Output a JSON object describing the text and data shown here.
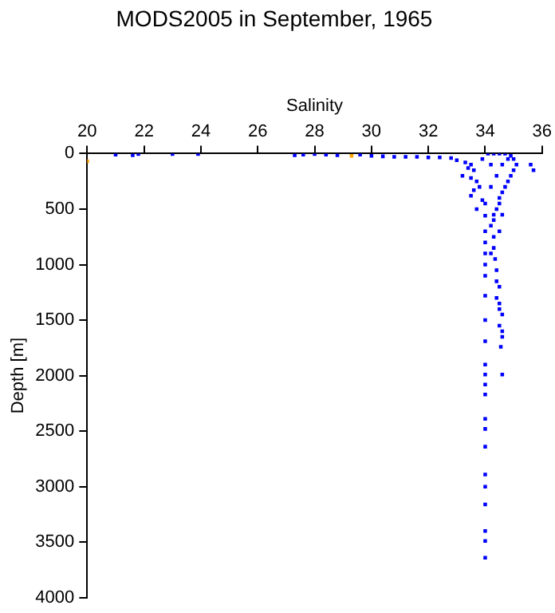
{
  "chart_data": {
    "type": "scatter",
    "title": "MODS2005 in September, 1965",
    "xlabel": "Salinity",
    "ylabel": "Depth [m]",
    "xlim": [
      20,
      36
    ],
    "xticks": [
      20,
      22,
      24,
      26,
      28,
      30,
      32,
      34,
      36
    ],
    "ylim": [
      4000,
      0
    ],
    "yticks": [
      0,
      500,
      1000,
      1500,
      2000,
      2500,
      3000,
      3500,
      4000
    ],
    "grid": false,
    "legend": false,
    "marker": "square",
    "series": [
      {
        "color": "#0000ff",
        "x": [
          21.0,
          21.6,
          21.8,
          23.0,
          23.9,
          27.3,
          27.6,
          28.0,
          28.4,
          28.8,
          29.6,
          30.0,
          30.4,
          30.8,
          31.2,
          31.6,
          32.0,
          32.4,
          32.8,
          33.0,
          33.3,
          33.5,
          33.4,
          33.6,
          33.2,
          33.5,
          33.7,
          33.8,
          33.6,
          33.5,
          33.9,
          33.7,
          34.0,
          34.1,
          34.3,
          34.5,
          34.7,
          34.9,
          35.0,
          35.1,
          35.0,
          34.9,
          34.8,
          34.7,
          34.6,
          34.5,
          34.5,
          34.4,
          34.3,
          34.3,
          34.2,
          34.0,
          34.3,
          34.0,
          34.3,
          34.0,
          34.35,
          34.0,
          34.4,
          34.0,
          34.4,
          34.5,
          34.0,
          34.4,
          34.5,
          34.5,
          34.0,
          34.6,
          34.5,
          34.6,
          34.6,
          34.0,
          34.55,
          34.0,
          34.0,
          34.6,
          34.0,
          34.0,
          34.0,
          34.0,
          34.0,
          34.0,
          34.0,
          34.0,
          34.0,
          34.0,
          34.0,
          35.6,
          35.7,
          34.2,
          34.6,
          34.8,
          33.9,
          34.4,
          34.2,
          34.0,
          34.6,
          34.5,
          34.2
        ],
        "values": [
          10,
          15,
          5,
          5,
          5,
          15,
          10,
          5,
          10,
          15,
          10,
          20,
          25,
          30,
          30,
          30,
          35,
          35,
          40,
          60,
          80,
          100,
          130,
          150,
          200,
          220,
          250,
          300,
          330,
          380,
          420,
          500,
          560,
          0,
          0,
          0,
          0,
          20,
          50,
          100,
          150,
          200,
          250,
          300,
          350,
          400,
          450,
          500,
          550,
          600,
          650,
          700,
          750,
          800,
          850,
          900,
          950,
          1000,
          1050,
          1100,
          1150,
          1200,
          1280,
          1300,
          1350,
          1400,
          1500,
          1450,
          1550,
          1600,
          1650,
          1690,
          1740,
          1900,
          1990,
          1990,
          2080,
          2170,
          2390,
          2480,
          2640,
          2890,
          3000,
          3160,
          3400,
          3490,
          3640,
          100,
          150,
          100,
          100,
          50,
          50,
          200,
          300,
          450,
          550,
          700,
          900
        ]
      },
      {
        "color": "#ffa500",
        "x": [
          20.0,
          29.3
        ],
        "values": [
          70,
          20
        ]
      }
    ]
  }
}
